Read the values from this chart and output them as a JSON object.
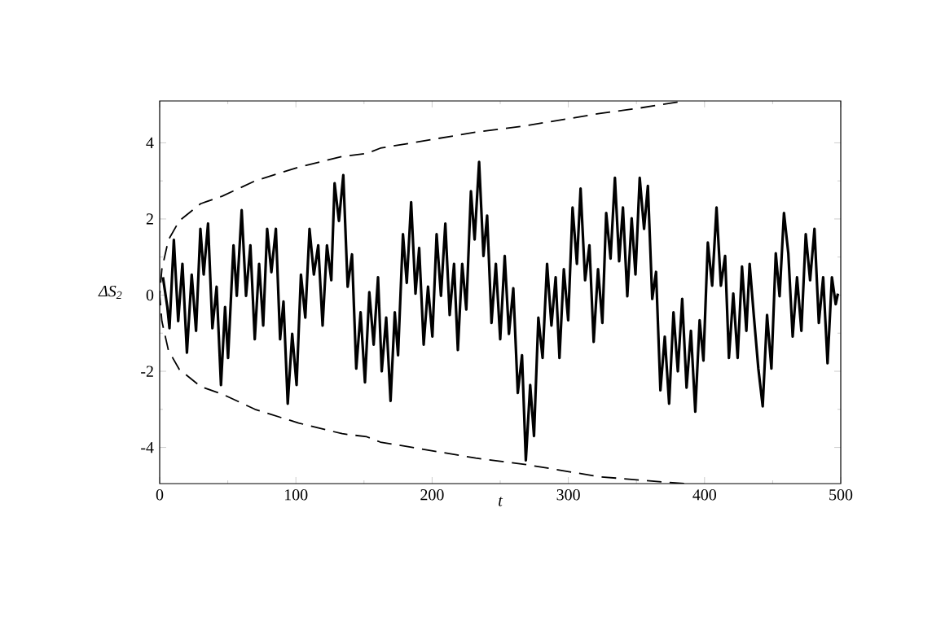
{
  "chart_data": {
    "type": "line",
    "xlabel": "t",
    "ylabel": "ΔS$_{2}$",
    "xlim": [
      0,
      500
    ],
    "ylim": [
      -4.95,
      5.1
    ],
    "xticks": [
      0,
      100,
      200,
      300,
      400,
      500
    ],
    "yticks": [
      -4,
      -2,
      0,
      2,
      4
    ],
    "marker": "none",
    "grid": false,
    "series": [
      {
        "color": "#000000",
        "line_style": "solid",
        "x": [
          2.4,
          5.6,
          7.2,
          10.4,
          13.6,
          16.7,
          20,
          23.5,
          26.7,
          29.9,
          32.3,
          35.5,
          38.7,
          41.8,
          45,
          48,
          50.2,
          54.2,
          56.6,
          60.2,
          63.4,
          66.6,
          69.8,
          73,
          76,
          78.9,
          82,
          85.3,
          88.4,
          90.9,
          94,
          97.3,
          100.5,
          103.7,
          106.9,
          110,
          113.2,
          116.4,
          119.6,
          122.8,
          126,
          128.4,
          131.6,
          134.8,
          138,
          141.2,
          144.3,
          147.5,
          150.7,
          153.9,
          157.1,
          160.3,
          163,
          166.3,
          169.5,
          172.6,
          175,
          178.6,
          181.4,
          184.6,
          187.8,
          190.5,
          193.8,
          197,
          200.2,
          203.3,
          206.5,
          209.7,
          212.9,
          216.1,
          218.9,
          222.1,
          225.1,
          228.5,
          231.2,
          234.5,
          237.7,
          240.4,
          243.6,
          246.8,
          250,
          253.3,
          256.4,
          259.6,
          262.9,
          266,
          268.8,
          272,
          274.8,
          278,
          281.1,
          284.4,
          287.6,
          290.7,
          293.5,
          296.7,
          299.9,
          303.1,
          306.3,
          309,
          312.3,
          315.5,
          318.6,
          321.8,
          325,
          327.8,
          331,
          334.2,
          337.3,
          340.1,
          343.3,
          346.5,
          349.3,
          352.4,
          355.6,
          358.4,
          361.6,
          364.4,
          367.6,
          370.8,
          374,
          377.2,
          380.4,
          383.6,
          386.8,
          390,
          393.2,
          396.4,
          399.2,
          402.4,
          405.6,
          408.8,
          412,
          415.1,
          417.9,
          421.1,
          424.3,
          427.5,
          430.7,
          433.1,
          436.3,
          439.5,
          442.7,
          445.9,
          449.1,
          452.3,
          455.1,
          458.3,
          461.5,
          464.7,
          467.9,
          471.1,
          474.3,
          477.5,
          480.7,
          483.9,
          487.1,
          490.3,
          493.5,
          496.3,
          497.9
        ],
        "values": [
          0.47,
          -0.31,
          -0.87,
          1.45,
          -0.68,
          0.82,
          -1.51,
          0.54,
          -0.94,
          1.74,
          0.54,
          1.88,
          -0.87,
          0.22,
          -2.36,
          -0.31,
          -1.65,
          1.31,
          -0.02,
          2.23,
          -0.02,
          1.31,
          -1.16,
          0.82,
          -0.8,
          1.74,
          0.6,
          1.74,
          -1.16,
          -0.17,
          -2.85,
          -1.02,
          -2.36,
          0.54,
          -0.59,
          1.74,
          0.54,
          1.31,
          -0.8,
          1.31,
          0.39,
          2.94,
          1.95,
          3.15,
          0.22,
          1.07,
          -1.93,
          -0.45,
          -2.29,
          0.08,
          -1.3,
          0.47,
          -2.0,
          -0.59,
          -2.78,
          -0.45,
          -1.58,
          1.6,
          0.32,
          2.44,
          0.04,
          1.24,
          -1.3,
          0.22,
          -1.09,
          1.6,
          -0.02,
          1.88,
          -0.52,
          0.82,
          -1.44,
          0.82,
          -0.38,
          2.73,
          1.46,
          3.5,
          1.03,
          2.09,
          -0.73,
          0.82,
          -1.16,
          1.03,
          -1.02,
          0.18,
          -2.57,
          -1.58,
          -4.34,
          -2.36,
          -3.7,
          -0.59,
          -1.65,
          0.82,
          -0.8,
          0.47,
          -1.65,
          0.68,
          -0.66,
          2.3,
          0.82,
          2.8,
          0.39,
          1.31,
          -1.23,
          0.68,
          -0.73,
          2.16,
          0.96,
          3.08,
          0.89,
          2.3,
          -0.03,
          2.02,
          0.54,
          3.08,
          1.74,
          2.87,
          -0.1,
          0.61,
          -2.5,
          -1.09,
          -2.85,
          -0.45,
          -2.0,
          -0.1,
          -2.43,
          -0.94,
          -3.06,
          -0.66,
          -1.72,
          1.38,
          0.25,
          2.3,
          0.25,
          1.03,
          -1.65,
          0.04,
          -1.65,
          0.75,
          -0.94,
          0.82,
          -0.59,
          -1.93,
          -2.92,
          -0.52,
          -1.93,
          1.1,
          -0.03,
          2.16,
          1.1,
          -1.09,
          0.47,
          -0.94,
          1.6,
          0.39,
          1.74,
          -0.73,
          0.47,
          -1.79,
          0.47,
          -0.24,
          0.04
        ]
      },
      {
        "color": "#000000",
        "line_style": "dashed",
        "x": [
          385,
          350,
          323,
          269,
          232,
          162,
          152,
          134,
          102,
          70,
          46,
          30,
          14.4,
          6.4,
          1.6,
          0,
          1.6,
          6.4,
          14.4,
          30,
          46,
          70,
          102,
          134,
          152,
          162,
          232,
          269,
          323,
          350,
          385
        ],
        "values": [
          -4.95,
          -4.85,
          -4.77,
          -4.45,
          -4.28,
          -3.86,
          -3.72,
          -3.64,
          -3.36,
          -3.0,
          -2.6,
          -2.4,
          -1.95,
          -1.45,
          -0.68,
          0,
          0.68,
          1.45,
          1.95,
          2.4,
          2.6,
          3.0,
          3.36,
          3.64,
          3.72,
          3.86,
          4.28,
          4.45,
          4.77,
          4.9,
          5.1
        ]
      }
    ]
  }
}
